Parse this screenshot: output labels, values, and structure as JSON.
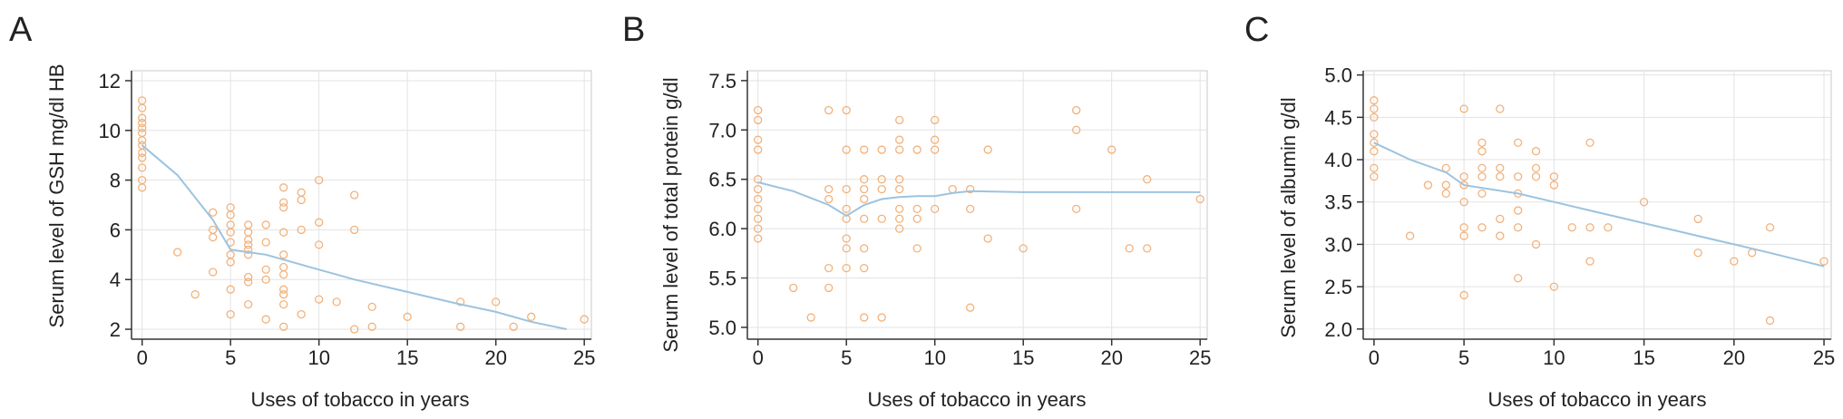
{
  "panels": [
    {
      "letter": "A",
      "chart_data": {
        "type": "scatter",
        "xlabel": "Uses of tobacco in years",
        "ylabel": "Serum level of GSH mg/dl HB",
        "xlim": [
          -0.6,
          25.4
        ],
        "ylim": [
          1.6,
          12.4
        ],
        "xticks": [
          0,
          5,
          10,
          15,
          20,
          25
        ],
        "yticks": [
          2,
          4,
          6,
          8,
          10,
          12
        ],
        "grid": true,
        "points": [
          [
            0,
            11.2
          ],
          [
            0,
            10.9
          ],
          [
            0,
            10.5
          ],
          [
            0,
            10.3
          ],
          [
            0,
            10.1
          ],
          [
            0,
            9.9
          ],
          [
            0,
            9.6
          ],
          [
            0,
            9.4
          ],
          [
            0,
            9.1
          ],
          [
            0,
            8.9
          ],
          [
            0,
            8.5
          ],
          [
            0,
            8.0
          ],
          [
            0,
            7.7
          ],
          [
            2,
            5.1
          ],
          [
            3,
            3.4
          ],
          [
            4,
            6.7
          ],
          [
            4,
            6.0
          ],
          [
            4,
            5.7
          ],
          [
            4,
            4.3
          ],
          [
            5,
            6.9
          ],
          [
            5,
            6.6
          ],
          [
            5,
            6.2
          ],
          [
            5,
            5.9
          ],
          [
            5,
            5.5
          ],
          [
            5,
            5.0
          ],
          [
            5,
            4.7
          ],
          [
            5,
            3.6
          ],
          [
            5,
            2.6
          ],
          [
            6,
            6.2
          ],
          [
            6,
            5.9
          ],
          [
            6,
            5.6
          ],
          [
            6,
            5.4
          ],
          [
            6,
            5.2
          ],
          [
            6,
            5.0
          ],
          [
            6,
            4.1
          ],
          [
            6,
            3.9
          ],
          [
            6,
            3.0
          ],
          [
            7,
            6.2
          ],
          [
            7,
            5.5
          ],
          [
            7,
            4.4
          ],
          [
            7,
            4.0
          ],
          [
            7,
            2.4
          ],
          [
            8,
            7.7
          ],
          [
            8,
            7.1
          ],
          [
            8,
            6.9
          ],
          [
            8,
            5.9
          ],
          [
            8,
            5.0
          ],
          [
            8,
            4.5
          ],
          [
            8,
            4.2
          ],
          [
            8,
            3.6
          ],
          [
            8,
            3.4
          ],
          [
            8,
            3.0
          ],
          [
            8,
            2.1
          ],
          [
            9,
            7.5
          ],
          [
            9,
            7.2
          ],
          [
            9,
            6.0
          ],
          [
            9,
            2.6
          ],
          [
            10,
            8.0
          ],
          [
            10,
            6.3
          ],
          [
            10,
            5.4
          ],
          [
            10,
            3.2
          ],
          [
            11,
            3.1
          ],
          [
            12,
            7.4
          ],
          [
            12,
            6.0
          ],
          [
            12,
            2.0
          ],
          [
            13,
            2.9
          ],
          [
            13,
            2.1
          ],
          [
            15,
            2.5
          ],
          [
            18,
            3.1
          ],
          [
            18,
            2.1
          ],
          [
            20,
            3.1
          ],
          [
            21,
            2.1
          ],
          [
            22,
            2.5
          ],
          [
            25,
            2.4
          ]
        ],
        "trend": [
          [
            0,
            9.4
          ],
          [
            2,
            8.2
          ],
          [
            4,
            6.4
          ],
          [
            5,
            5.2
          ],
          [
            6,
            5.1
          ],
          [
            7,
            5.0
          ],
          [
            8,
            4.8
          ],
          [
            10,
            4.4
          ],
          [
            12,
            4.0
          ],
          [
            15,
            3.5
          ],
          [
            18,
            3.0
          ],
          [
            20,
            2.7
          ],
          [
            22,
            2.3
          ],
          [
            24,
            2.0
          ]
        ]
      }
    },
    {
      "letter": "B",
      "chart_data": {
        "type": "scatter",
        "xlabel": "Uses of tobacco in years",
        "ylabel": "Serum level of total protein g/dl",
        "xlim": [
          -0.6,
          25.4
        ],
        "ylim": [
          4.88,
          7.6
        ],
        "xticks": [
          0,
          5,
          10,
          15,
          20,
          25
        ],
        "yticks": [
          5.0,
          5.5,
          6.0,
          6.5,
          7.0,
          7.5
        ],
        "ytick_labels": [
          "5.0",
          "5.5",
          "6.0",
          "6.5",
          "7.0",
          "7.5"
        ],
        "grid": true,
        "points": [
          [
            0,
            7.2
          ],
          [
            0,
            7.1
          ],
          [
            0,
            6.9
          ],
          [
            0,
            6.8
          ],
          [
            0,
            6.5
          ],
          [
            0,
            6.4
          ],
          [
            0,
            6.3
          ],
          [
            0,
            6.2
          ],
          [
            0,
            6.1
          ],
          [
            0,
            6.0
          ],
          [
            0,
            5.9
          ],
          [
            2,
            5.4
          ],
          [
            3,
            5.1
          ],
          [
            4,
            7.2
          ],
          [
            4,
            6.4
          ],
          [
            4,
            6.3
          ],
          [
            4,
            5.6
          ],
          [
            4,
            5.4
          ],
          [
            5,
            7.2
          ],
          [
            5,
            6.8
          ],
          [
            5,
            6.4
          ],
          [
            5,
            6.2
          ],
          [
            5,
            6.1
          ],
          [
            5,
            5.9
          ],
          [
            5,
            5.8
          ],
          [
            5,
            5.6
          ],
          [
            6,
            6.8
          ],
          [
            6,
            6.5
          ],
          [
            6,
            6.4
          ],
          [
            6,
            6.3
          ],
          [
            6,
            6.1
          ],
          [
            6,
            5.8
          ],
          [
            6,
            5.6
          ],
          [
            6,
            5.1
          ],
          [
            7,
            6.8
          ],
          [
            7,
            6.5
          ],
          [
            7,
            6.4
          ],
          [
            7,
            6.1
          ],
          [
            7,
            5.1
          ],
          [
            8,
            7.1
          ],
          [
            8,
            6.9
          ],
          [
            8,
            6.8
          ],
          [
            8,
            6.5
          ],
          [
            8,
            6.4
          ],
          [
            8,
            6.2
          ],
          [
            8,
            6.1
          ],
          [
            8,
            6.0
          ],
          [
            9,
            6.8
          ],
          [
            9,
            6.2
          ],
          [
            9,
            6.1
          ],
          [
            9,
            5.8
          ],
          [
            10,
            7.1
          ],
          [
            10,
            6.9
          ],
          [
            10,
            6.8
          ],
          [
            10,
            6.2
          ],
          [
            11,
            6.4
          ],
          [
            12,
            6.4
          ],
          [
            12,
            6.2
          ],
          [
            12,
            5.2
          ],
          [
            13,
            6.8
          ],
          [
            13,
            5.9
          ],
          [
            15,
            5.8
          ],
          [
            18,
            7.2
          ],
          [
            18,
            7.0
          ],
          [
            18,
            6.2
          ],
          [
            20,
            6.8
          ],
          [
            21,
            5.8
          ],
          [
            22,
            6.5
          ],
          [
            22,
            5.8
          ],
          [
            25,
            6.3
          ]
        ],
        "trend": [
          [
            0,
            6.47
          ],
          [
            2,
            6.38
          ],
          [
            4,
            6.24
          ],
          [
            5,
            6.13
          ],
          [
            6,
            6.24
          ],
          [
            7,
            6.3
          ],
          [
            8,
            6.32
          ],
          [
            9,
            6.33
          ],
          [
            10,
            6.33
          ],
          [
            11,
            6.36
          ],
          [
            12,
            6.38
          ],
          [
            15,
            6.37
          ],
          [
            20,
            6.37
          ],
          [
            25,
            6.37
          ]
        ]
      }
    },
    {
      "letter": "C",
      "chart_data": {
        "type": "scatter",
        "xlabel": "Uses of tobacco in years",
        "ylabel": "Serum level of albumin g/dl",
        "xlim": [
          -0.6,
          25.4
        ],
        "ylim": [
          1.88,
          5.05
        ],
        "xticks": [
          0,
          5,
          10,
          15,
          20,
          25
        ],
        "yticks": [
          2.0,
          2.5,
          3.0,
          3.5,
          4.0,
          4.5,
          5.0
        ],
        "ytick_labels": [
          "2.0",
          "2.5",
          "3.0",
          "3.5",
          "4.0",
          "4.5",
          "5.0"
        ],
        "grid": true,
        "points": [
          [
            0,
            4.7
          ],
          [
            0,
            4.6
          ],
          [
            0,
            4.5
          ],
          [
            0,
            4.3
          ],
          [
            0,
            4.2
          ],
          [
            0,
            4.1
          ],
          [
            0,
            3.9
          ],
          [
            0,
            3.8
          ],
          [
            2,
            3.1
          ],
          [
            3,
            3.7
          ],
          [
            4,
            3.9
          ],
          [
            4,
            3.7
          ],
          [
            4,
            3.6
          ],
          [
            5,
            4.6
          ],
          [
            5,
            3.8
          ],
          [
            5,
            3.7
          ],
          [
            5,
            3.5
          ],
          [
            5,
            3.2
          ],
          [
            5,
            3.1
          ],
          [
            5,
            2.4
          ],
          [
            6,
            4.2
          ],
          [
            6,
            4.1
          ],
          [
            6,
            3.9
          ],
          [
            6,
            3.8
          ],
          [
            6,
            3.6
          ],
          [
            6,
            3.2
          ],
          [
            7,
            4.6
          ],
          [
            7,
            3.9
          ],
          [
            7,
            3.8
          ],
          [
            7,
            3.3
          ],
          [
            7,
            3.1
          ],
          [
            8,
            4.2
          ],
          [
            8,
            3.8
          ],
          [
            8,
            3.6
          ],
          [
            8,
            3.4
          ],
          [
            8,
            3.2
          ],
          [
            8,
            2.6
          ],
          [
            9,
            4.1
          ],
          [
            9,
            3.9
          ],
          [
            9,
            3.8
          ],
          [
            9,
            3.0
          ],
          [
            10,
            3.8
          ],
          [
            10,
            3.7
          ],
          [
            10,
            2.5
          ],
          [
            11,
            3.2
          ],
          [
            12,
            4.2
          ],
          [
            12,
            3.2
          ],
          [
            12,
            2.8
          ],
          [
            13,
            3.2
          ],
          [
            15,
            3.5
          ],
          [
            18,
            3.3
          ],
          [
            18,
            2.9
          ],
          [
            20,
            2.8
          ],
          [
            21,
            2.9
          ],
          [
            22,
            3.2
          ],
          [
            22,
            2.1
          ],
          [
            25,
            2.8
          ]
        ],
        "trend": [
          [
            0,
            4.2
          ],
          [
            2,
            4.0
          ],
          [
            4,
            3.85
          ],
          [
            5,
            3.7
          ],
          [
            8,
            3.6
          ],
          [
            10,
            3.5
          ],
          [
            12,
            3.4
          ],
          [
            15,
            3.25
          ],
          [
            18,
            3.1
          ],
          [
            20,
            3.0
          ],
          [
            22,
            2.9
          ],
          [
            25,
            2.74
          ]
        ]
      }
    }
  ]
}
